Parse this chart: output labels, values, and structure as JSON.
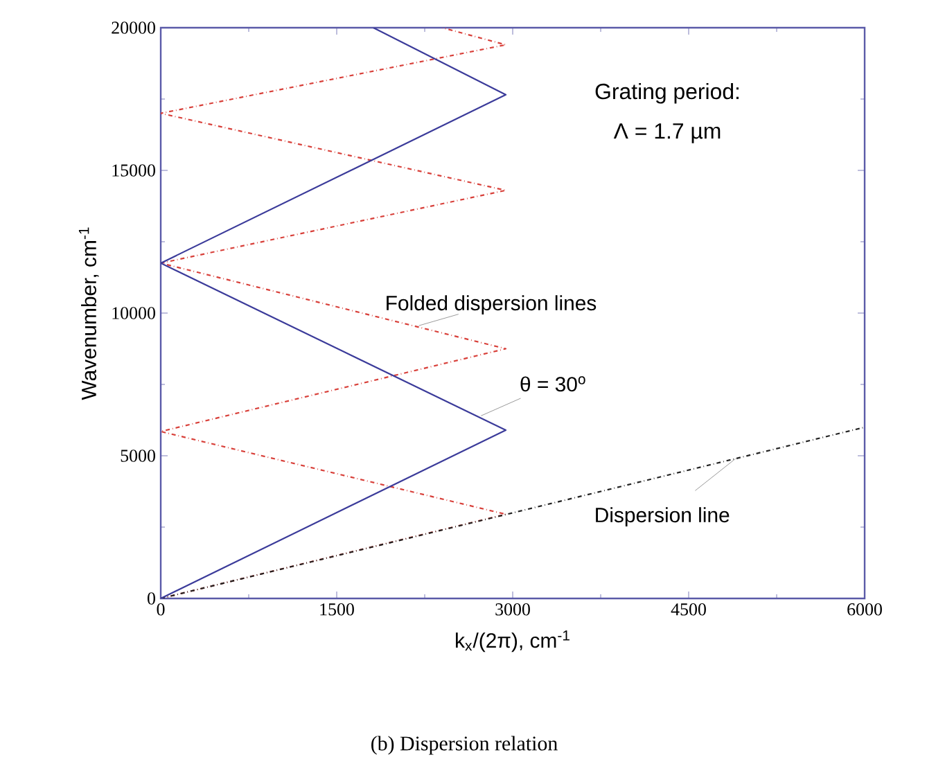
{
  "chart_data": {
    "type": "line",
    "title": "(b) Dispersion relation",
    "xlabel": "k$_{x}$/(2π), cm$^{-1}$",
    "ylabel": "Wavenumber, cm$^{-1}$",
    "xlim": [
      0,
      6000
    ],
    "ylim": [
      0,
      20000
    ],
    "xticks": [
      0,
      1500,
      3000,
      4500,
      6000
    ],
    "yticks": [
      0,
      5000,
      10000,
      15000,
      20000
    ],
    "grid": false,
    "marker": "none",
    "series": [
      {
        "color": "#d8403a",
        "line_style": "dashdot",
        "x": [
          0,
          2941,
          0,
          2941,
          0,
          2941,
          0,
          2941,
          2400
        ],
        "values": [
          0,
          2950,
          5850,
          8750,
          11750,
          14300,
          17000,
          19400,
          20000
        ]
      },
      {
        "color": "#222222",
        "line_style": "dashdot",
        "x": [
          0,
          6000
        ],
        "values": [
          0,
          6000
        ]
      },
      {
        "color": "#3b3b9a",
        "line_style": "solid",
        "x": [
          0,
          2941,
          0,
          2941,
          1812
        ],
        "values": [
          0,
          5900,
          11750,
          17650,
          20000
        ]
      }
    ],
    "annotations": [
      "Grating period:",
      "Λ = 1.7 µm",
      {
        "text": "Folded dispersion lines",
        "x": 2200,
        "y": 9560
      },
      {
        "text": "θ = 30$^{o}$",
        "x": 2730,
        "y": 6400
      },
      {
        "text": "Dispersion line",
        "x": 4900,
        "y": 4900
      }
    ]
  }
}
